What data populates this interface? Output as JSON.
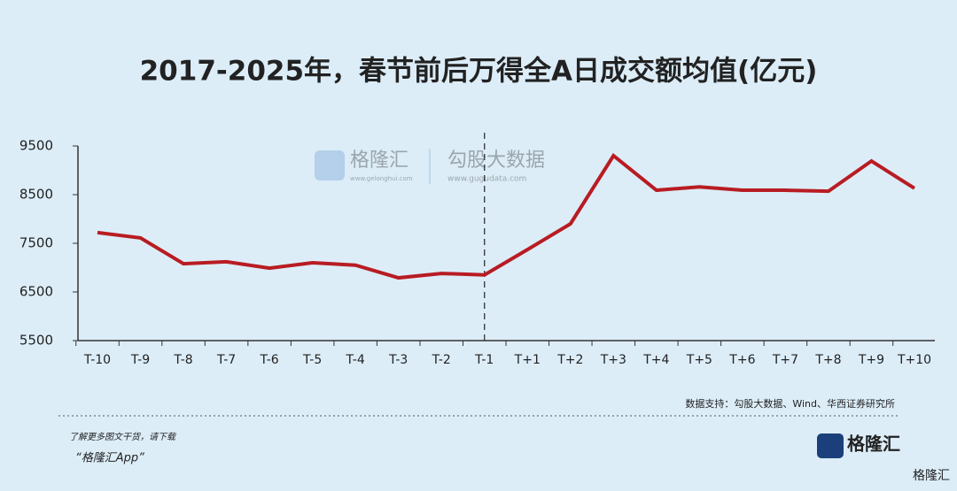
{
  "chart_data": {
    "type": "line",
    "title": "2017-2025年，春节前后万得全A日成交额均值(亿元)",
    "categories": [
      "T-10",
      "T-9",
      "T-8",
      "T-7",
      "T-6",
      "T-5",
      "T-4",
      "T-3",
      "T-2",
      "T-1",
      "T+1",
      "T+2",
      "T+3",
      "T+4",
      "T+5",
      "T+6",
      "T+7",
      "T+8",
      "T+9",
      "T+10"
    ],
    "series": [
      {
        "color": "#b81c22",
        "values": [
          7720,
          7610,
          7080,
          7120,
          6990,
          7100,
          7050,
          6790,
          6880,
          6850,
          7370,
          7900,
          9300,
          8590,
          8660,
          8590,
          8590,
          8570,
          9190,
          8630
        ]
      }
    ],
    "ylim": [
      5500,
      9500
    ],
    "yticks": [
      5500,
      6500,
      7500,
      8500,
      9500
    ],
    "grid": false,
    "vline_index": 9,
    "source": "数据支持：勾股大数据、Wind、华西证券研究所"
  },
  "watermark": {
    "brand": "格隆汇",
    "brand_url": "www.gelonghui.com",
    "partner": "勾股大数据",
    "partner_url": "www.gugudata.com"
  },
  "footer": {
    "prompt": "了解更多图文干货，请下载",
    "app": "“格隆汇App”",
    "logo": "格隆汇",
    "corner": "格隆汇"
  }
}
